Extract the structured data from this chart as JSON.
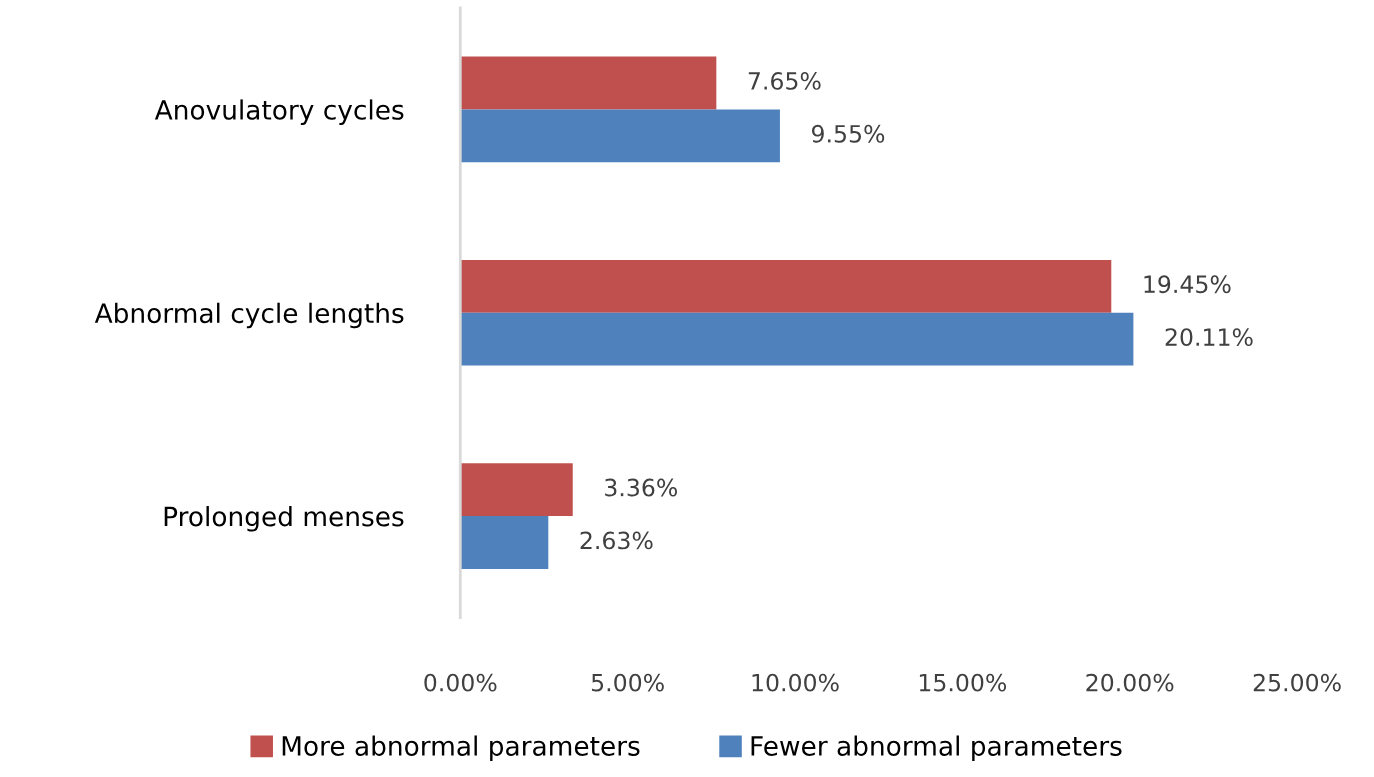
{
  "chart_data": {
    "type": "bar",
    "orientation": "horizontal",
    "categories": [
      "Anovulatory cycles",
      "Abnormal cycle lengths",
      "Prolonged menses"
    ],
    "series": [
      {
        "name": "More abnormal parameters",
        "color": "#c0504d",
        "values": [
          7.65,
          19.45,
          3.36
        ],
        "value_labels": [
          "7.65%",
          "19.45%",
          "3.36%"
        ]
      },
      {
        "name": "Fewer abnormal parameters",
        "color": "#4f81bd",
        "values": [
          9.55,
          20.11,
          2.63
        ],
        "value_labels": [
          "9.55%",
          "20.11%",
          "2.63%"
        ]
      }
    ],
    "xlim": [
      0,
      25
    ],
    "xticks": [
      {
        "value": 0,
        "label": "0.00%"
      },
      {
        "value": 5,
        "label": "5.00%"
      },
      {
        "value": 10,
        "label": "10.00%"
      },
      {
        "value": 15,
        "label": "15.00%"
      },
      {
        "value": 20,
        "label": "20.00%"
      },
      {
        "value": 25,
        "label": "25.00%"
      }
    ],
    "legend": "bottom",
    "grid": false
  }
}
